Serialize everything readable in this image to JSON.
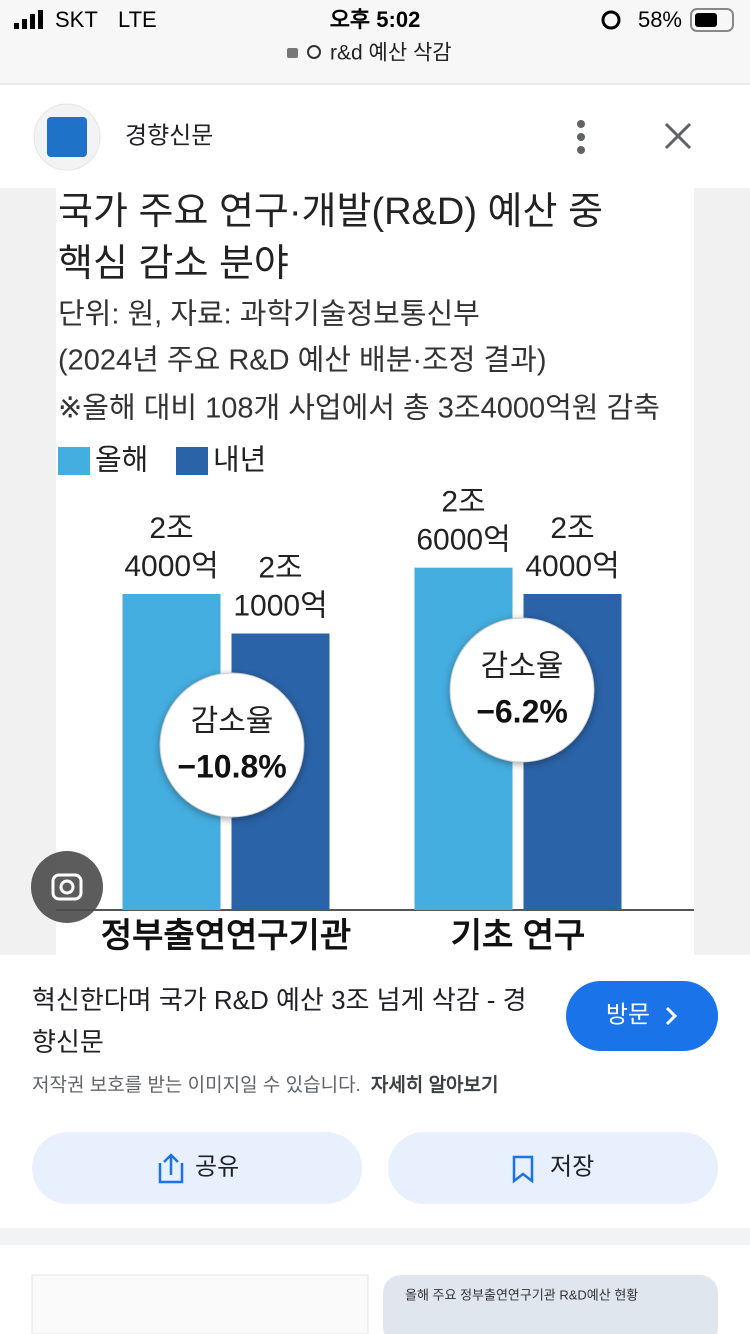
{
  "status_bar": {
    "carrier": "SKT",
    "network": "LTE",
    "time": "오후 5:02",
    "battery": "58%"
  },
  "address_bar": {
    "query": "r&d 예산 삭감"
  },
  "header": {
    "source": "경향신문"
  },
  "chart_data": {
    "type": "bar",
    "title": [
      "국가 주요 연구·개발(R&D) 예산 중",
      "핵심 감소 분야"
    ],
    "subtitle": [
      "단위: 원, 자료: 과학기술정보통신부",
      "(2024년 주요 R&D 예산 배분·조정 결과)",
      "※올해 대비 108개 사업에서 총 3조4000억원 감축"
    ],
    "categories": [
      "정부출연연구기관",
      "기초 연구"
    ],
    "series": [
      {
        "name": "올해",
        "color": "#45aee0",
        "values": [
          24000,
          26000
        ],
        "value_labels": [
          [
            "2조",
            "4000억"
          ],
          [
            "2조",
            "6000억"
          ]
        ]
      },
      {
        "name": "내년",
        "color": "#2b63a8",
        "values": [
          21000,
          24000
        ],
        "value_labels": [
          [
            "2조",
            "1000억"
          ],
          [
            "2조",
            "4000억"
          ]
        ]
      }
    ],
    "annotations": {
      "label": "감소율",
      "values": [
        -10.8,
        -6.2
      ],
      "value_labels": [
        "−10.8%",
        "−6.2%"
      ]
    },
    "legend": "top-left"
  },
  "result": {
    "title": "혁신한다며 국가 R&D 예산 3조 넘게 삭감 - 경향신문",
    "visit": "방문",
    "notice": "저작권 보호를 받는 이미지일 수 있습니다.",
    "learn_more": "자세히 알아보기"
  },
  "actions": [
    "공유",
    "저장"
  ],
  "related": {
    "title": "올해 주요 정부출연연구기관 R&D예산 현황"
  }
}
